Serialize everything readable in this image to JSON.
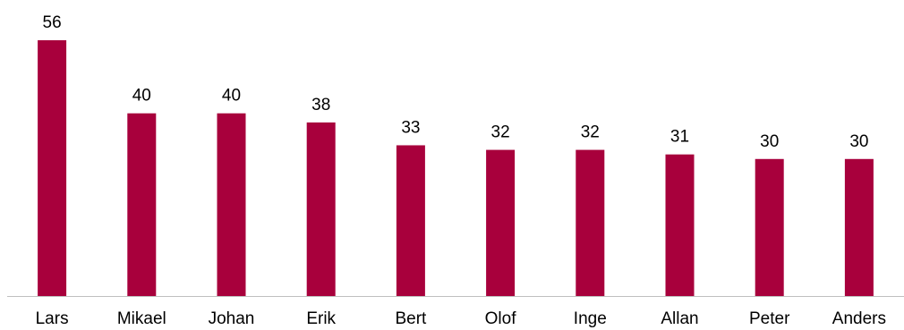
{
  "chart_data": {
    "type": "bar",
    "categories": [
      "Lars",
      "Mikael",
      "Johan",
      "Erik",
      "Bert",
      "Olof",
      "Inge",
      "Allan",
      "Peter",
      "Anders"
    ],
    "values": [
      56,
      40,
      40,
      38,
      33,
      32,
      32,
      31,
      30,
      30
    ],
    "title": "",
    "xlabel": "",
    "ylabel": "",
    "ylim": [
      0,
      56
    ],
    "grid": false,
    "legend": "none",
    "data_labels": true,
    "colors": {
      "bar": "#a8003c",
      "axis": "#bfbfbf",
      "text": "#000000"
    }
  }
}
